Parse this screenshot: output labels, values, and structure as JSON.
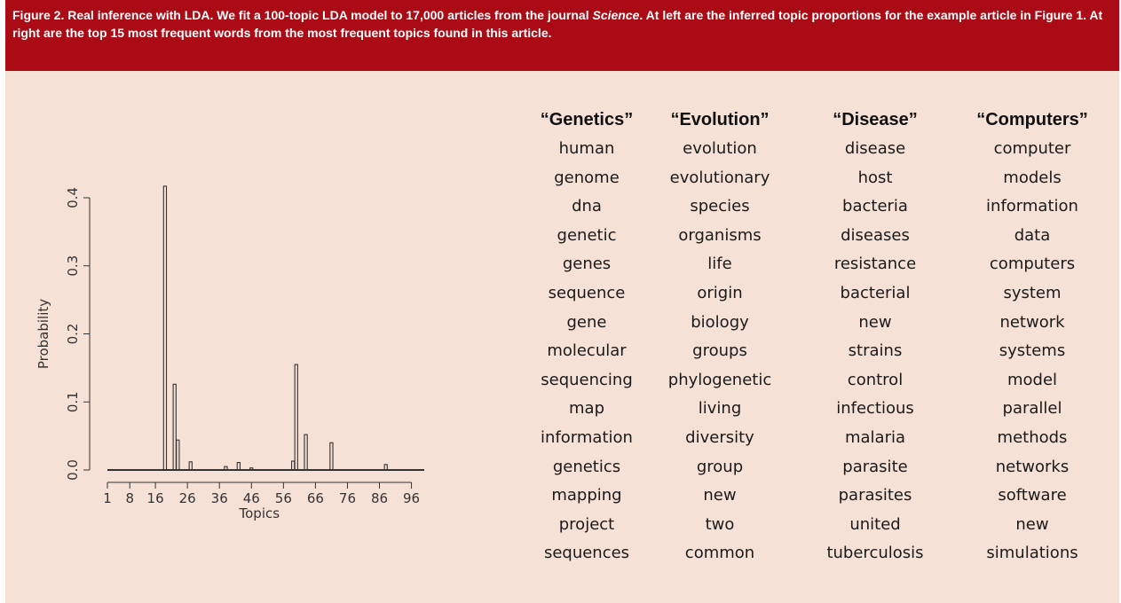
{
  "caption": {
    "lead": "Figure 2. Real inference with LDA. We fit a 100-topic LDA model to 17,000 articles from the journal ",
    "journal": "Science",
    "rest": ". At left are the inferred topic proportions for the example article in Figure 1. At right are the top 15 most frequent words from the most frequent topics found in this article."
  },
  "colors": {
    "caption_bg": "#ab0b15",
    "panel_bg": "#f6e1d6",
    "bar_stroke": "#333333"
  },
  "chart_data": {
    "type": "bar",
    "title": "",
    "xlabel": "Topics",
    "ylabel": "Probability",
    "xlim": [
      1,
      100
    ],
    "ylim": [
      0,
      0.4
    ],
    "xticks": [
      1,
      8,
      16,
      26,
      36,
      46,
      56,
      66,
      76,
      86,
      96
    ],
    "yticks": [
      "0.0",
      "0.1",
      "0.2",
      "0.3",
      "0.4"
    ],
    "grid": false,
    "legend": "none",
    "x": [
      19,
      22,
      23,
      27,
      38,
      42,
      46,
      59,
      60,
      63,
      71,
      88
    ],
    "values": [
      0.417,
      0.126,
      0.044,
      0.012,
      0.005,
      0.011,
      0.003,
      0.013,
      0.155,
      0.052,
      0.04,
      0.008
    ],
    "baseline_note": "all other topics ≈ 0"
  },
  "topics": [
    {
      "heading": "“Genetics”",
      "words": [
        "human",
        "genome",
        "dna",
        "genetic",
        "genes",
        "sequence",
        "gene",
        "molecular",
        "sequencing",
        "map",
        "information",
        "genetics",
        "mapping",
        "project",
        "sequences"
      ]
    },
    {
      "heading": "“Evolution”",
      "words": [
        "evolution",
        "evolutionary",
        "species",
        "organisms",
        "life",
        "origin",
        "biology",
        "groups",
        "phylogenetic",
        "living",
        "diversity",
        "group",
        "new",
        "two",
        "common"
      ]
    },
    {
      "heading": "“Disease”",
      "words": [
        "disease",
        "host",
        "bacteria",
        "diseases",
        "resistance",
        "bacterial",
        "new",
        "strains",
        "control",
        "infectious",
        "malaria",
        "parasite",
        "parasites",
        "united",
        "tuberculosis"
      ]
    },
    {
      "heading": "“Computers”",
      "words": [
        "computer",
        "models",
        "information",
        "data",
        "computers",
        "system",
        "network",
        "systems",
        "model",
        "parallel",
        "methods",
        "networks",
        "software",
        "new",
        "simulations"
      ]
    }
  ]
}
